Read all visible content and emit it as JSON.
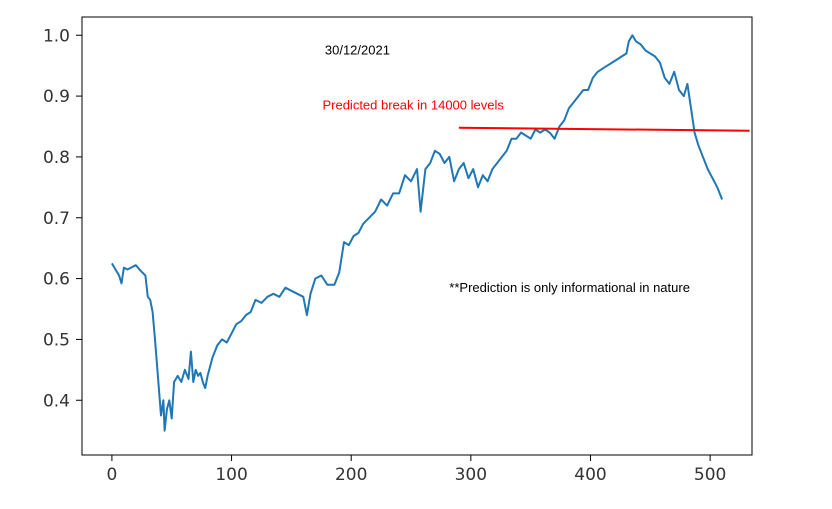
{
  "chart_data": {
    "type": "line",
    "title": "",
    "xlabel": "",
    "ylabel": "",
    "xlim": [
      -25,
      535
    ],
    "ylim": [
      0.31,
      1.03
    ],
    "xticks": [
      0,
      100,
      200,
      300,
      400,
      500
    ],
    "yticks": [
      0.4,
      0.5,
      0.6,
      0.7,
      0.8,
      0.9,
      1.0
    ],
    "xtick_labels": [
      "0",
      "100",
      "200",
      "300",
      "400",
      "500"
    ],
    "ytick_labels": [
      "0.4",
      "0.5",
      "0.6",
      "0.7",
      "0.8",
      "0.9",
      "1.0"
    ],
    "grid": false,
    "series": [
      {
        "color": "#1f77b4",
        "x": [
          0,
          3,
          6,
          8,
          10,
          13,
          16,
          20,
          24,
          28,
          30,
          32,
          34,
          36,
          38,
          40,
          41,
          43,
          44,
          46,
          48,
          50,
          52,
          55,
          58,
          61,
          64,
          66,
          68,
          70,
          72,
          74,
          76,
          78,
          80,
          84,
          88,
          92,
          96,
          100,
          104,
          108,
          112,
          116,
          120,
          125,
          130,
          135,
          140,
          145,
          150,
          155,
          160,
          163,
          166,
          170,
          175,
          180,
          186,
          190,
          194,
          198,
          202,
          206,
          210,
          215,
          220,
          225,
          230,
          235,
          240,
          245,
          250,
          255,
          258,
          262,
          266,
          270,
          274,
          278,
          282,
          286,
          290,
          294,
          298,
          302,
          306,
          310,
          314,
          318,
          322,
          326,
          330,
          334,
          338,
          342,
          346,
          350,
          354,
          358,
          362,
          366,
          370,
          374,
          378,
          382,
          386,
          390,
          394,
          398,
          402,
          406,
          410,
          414,
          418,
          422,
          426,
          430,
          432,
          435,
          438,
          442,
          446,
          450,
          454,
          458,
          462,
          466,
          470,
          474,
          478,
          481,
          484,
          487,
          490,
          494,
          498,
          502,
          506,
          510
        ],
        "y": [
          0.625,
          0.615,
          0.605,
          0.592,
          0.618,
          0.615,
          0.618,
          0.622,
          0.613,
          0.605,
          0.57,
          0.565,
          0.545,
          0.5,
          0.45,
          0.4,
          0.375,
          0.4,
          0.35,
          0.385,
          0.4,
          0.37,
          0.43,
          0.44,
          0.43,
          0.45,
          0.435,
          0.48,
          0.43,
          0.45,
          0.44,
          0.445,
          0.43,
          0.42,
          0.44,
          0.47,
          0.49,
          0.5,
          0.495,
          0.51,
          0.525,
          0.53,
          0.54,
          0.545,
          0.565,
          0.56,
          0.57,
          0.575,
          0.57,
          0.585,
          0.58,
          0.575,
          0.57,
          0.54,
          0.575,
          0.6,
          0.605,
          0.59,
          0.59,
          0.61,
          0.66,
          0.655,
          0.67,
          0.675,
          0.69,
          0.7,
          0.71,
          0.73,
          0.72,
          0.74,
          0.74,
          0.77,
          0.76,
          0.78,
          0.71,
          0.78,
          0.79,
          0.81,
          0.805,
          0.79,
          0.8,
          0.76,
          0.78,
          0.79,
          0.765,
          0.78,
          0.75,
          0.77,
          0.76,
          0.78,
          0.79,
          0.8,
          0.81,
          0.83,
          0.83,
          0.84,
          0.835,
          0.83,
          0.845,
          0.84,
          0.845,
          0.84,
          0.83,
          0.85,
          0.86,
          0.88,
          0.89,
          0.9,
          0.91,
          0.91,
          0.93,
          0.94,
          0.945,
          0.95,
          0.955,
          0.96,
          0.965,
          0.97,
          0.99,
          1.0,
          0.99,
          0.985,
          0.975,
          0.97,
          0.965,
          0.955,
          0.93,
          0.92,
          0.94,
          0.91,
          0.9,
          0.92,
          0.88,
          0.84,
          0.82,
          0.8,
          0.78,
          0.765,
          0.75,
          0.73
        ]
      }
    ],
    "annotations": [
      {
        "text": "30/12/2021",
        "x": 178,
        "y": 0.968,
        "color": "#000000"
      },
      {
        "text": "Predicted break in 14000 levels",
        "x": 176,
        "y": 0.878,
        "color": "#ff0000"
      },
      {
        "text": "**Prediction is only informational in nature",
        "x": 282,
        "y": 0.578,
        "color": "#000000"
      }
    ],
    "trend_line": {
      "color": "#ff0000",
      "x": [
        290,
        533
      ],
      "y": [
        0.848,
        0.843
      ]
    }
  }
}
